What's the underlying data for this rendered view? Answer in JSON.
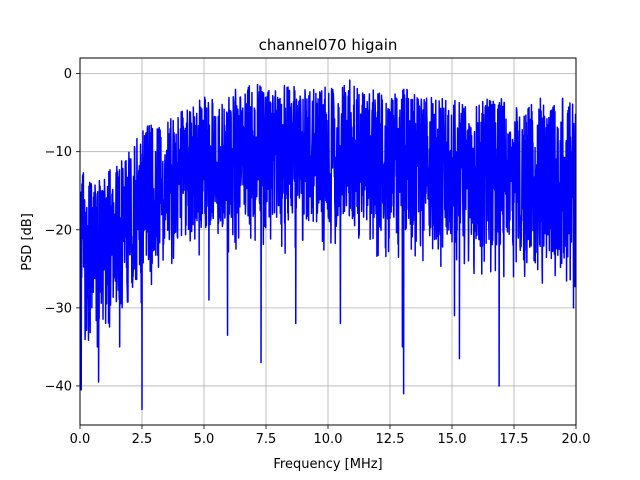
{
  "chart_data": {
    "type": "line",
    "title": "channel070 higain",
    "xlabel": "Frequency [MHz]",
    "ylabel": "PSD [dB]",
    "xlim": [
      0,
      20
    ],
    "ylim": [
      -45,
      2
    ],
    "xticks": [
      0,
      2.5,
      5,
      7.5,
      10,
      12.5,
      15,
      17.5,
      20
    ],
    "xtick_labels": [
      "0.0",
      "2.5",
      "5.0",
      "7.5",
      "10.0",
      "12.5",
      "15.0",
      "17.5",
      "20.0"
    ],
    "yticks": [
      0,
      -10,
      -20,
      -30,
      -40
    ],
    "ytick_labels": [
      "0",
      "−10",
      "−20",
      "−30",
      "−40"
    ],
    "grid": true,
    "legend": "none",
    "line_color": "#0000ff",
    "series": [
      {
        "x_start": 0,
        "x_end": 20,
        "envelope": {
          "x": [
            0,
            0.5,
            1,
            1.5,
            2,
            2.5,
            3,
            3.5,
            4,
            4.5,
            5,
            5.5,
            6,
            6.5,
            7,
            7.5,
            8,
            8.5,
            9,
            9.5,
            10,
            10.5,
            11,
            11.5,
            12,
            12.5,
            13,
            13.5,
            14,
            14.5,
            15,
            15.5,
            16,
            16.5,
            17,
            17.5,
            18,
            18.5,
            19,
            19.5,
            20
          ],
          "upper": [
            -12,
            -14,
            -13,
            -11,
            -10,
            -7,
            -6,
            -6,
            -5,
            -4,
            -3,
            -3,
            -2,
            -2,
            -1,
            -2,
            -2,
            -1,
            -2,
            -2,
            -1,
            -2,
            0,
            -2,
            -2,
            -3,
            -2,
            -2,
            -3,
            -3,
            -3,
            -4,
            -4,
            -3,
            -3,
            -4,
            -4,
            -3,
            -4,
            -3,
            -4
          ],
          "typical": [
            -20,
            -22,
            -21,
            -20,
            -18,
            -16,
            -15,
            -14,
            -13,
            -12,
            -12,
            -11,
            -11,
            -10,
            -10,
            -10,
            -10,
            -10,
            -10,
            -10,
            -10,
            -10,
            -10,
            -10,
            -11,
            -11,
            -11,
            -11,
            -11,
            -12,
            -12,
            -12,
            -12,
            -12,
            -12,
            -12,
            -13,
            -13,
            -13,
            -13,
            -13
          ],
          "lower": [
            -30,
            -32,
            -30,
            -28,
            -28,
            -26,
            -24,
            -22,
            -21,
            -20,
            -20,
            -19,
            -19,
            -19,
            -19,
            -19,
            -19,
            -19,
            -19,
            -19,
            -19,
            -19,
            -19,
            -19,
            -20,
            -20,
            -20,
            -20,
            -21,
            -21,
            -21,
            -21,
            -22,
            -22,
            -22,
            -23,
            -23,
            -23,
            -23,
            -23,
            -24
          ]
        },
        "notable_dips": [
          {
            "x": 0.05,
            "y": -40.5
          },
          {
            "x": 0.7,
            "y": -35
          },
          {
            "x": 0.75,
            "y": -39.5
          },
          {
            "x": 1.6,
            "y": -35
          },
          {
            "x": 2.5,
            "y": -43
          },
          {
            "x": 5.2,
            "y": -29
          },
          {
            "x": 5.95,
            "y": -33.5
          },
          {
            "x": 7.3,
            "y": -37
          },
          {
            "x": 8.7,
            "y": -32
          },
          {
            "x": 10.5,
            "y": -32
          },
          {
            "x": 13.05,
            "y": -41
          },
          {
            "x": 13.0,
            "y": -35
          },
          {
            "x": 15.3,
            "y": -36.5
          },
          {
            "x": 15.1,
            "y": -31
          },
          {
            "x": 16.9,
            "y": -40
          },
          {
            "x": 19.9,
            "y": -30
          }
        ]
      }
    ]
  }
}
